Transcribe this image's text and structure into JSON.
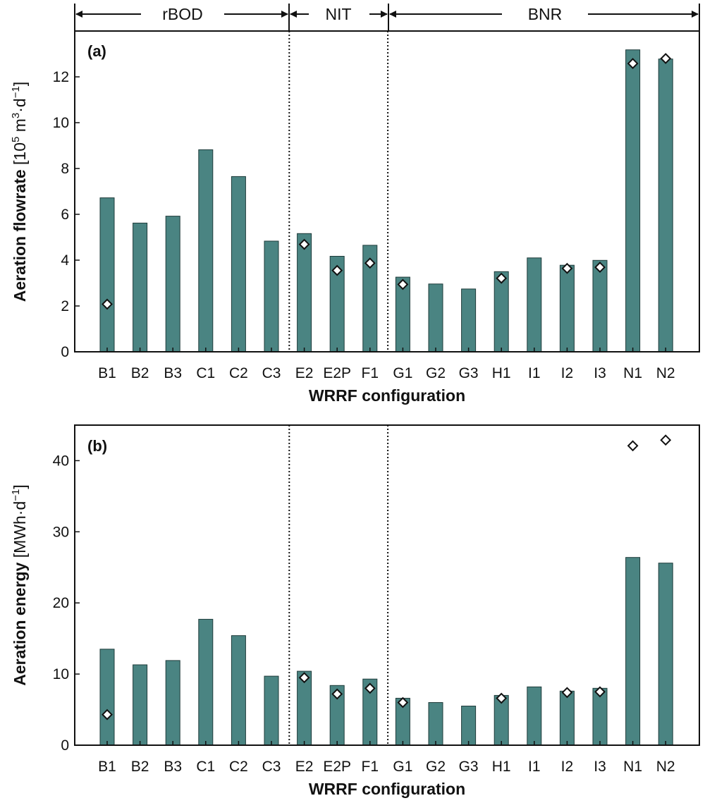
{
  "figure": {
    "xlabel": "WRRF configuration",
    "groups": [
      "rBOD",
      "NIT",
      "BNR"
    ],
    "bar_color": "#4a8482",
    "marker_fill": "#ffffff"
  },
  "chart_data": [
    {
      "type": "bar",
      "panel_label": "(a)",
      "ylabel_bold": "Aeration flowrate",
      "ylabel_unit_open": "[10",
      "ylabel_exp1": "5",
      "ylabel_mid": " m",
      "ylabel_exp2": "3",
      "ylabel_mid2": "·d",
      "ylabel_exp3": "−1",
      "ylabel_close": "]",
      "xlabel": "WRRF configuration",
      "categories": [
        "B1",
        "B2",
        "B3",
        "C1",
        "C2",
        "C3",
        "E2",
        "E2P",
        "F1",
        "G1",
        "G2",
        "G3",
        "H1",
        "I1",
        "I2",
        "I3",
        "N1",
        "N2"
      ],
      "ylim": [
        0,
        14
      ],
      "yticks": [
        0,
        2,
        4,
        6,
        8,
        10,
        12
      ],
      "series": [
        {
          "name": "bars",
          "values": [
            6.72,
            5.62,
            5.92,
            8.82,
            7.65,
            4.83,
            5.16,
            4.17,
            4.65,
            3.26,
            2.96,
            2.74,
            3.5,
            4.1,
            3.78,
            3.99,
            13.18,
            12.78
          ]
        },
        {
          "name": "markers",
          "values": [
            2.08,
            null,
            null,
            null,
            null,
            null,
            4.69,
            3.55,
            3.87,
            2.94,
            null,
            null,
            3.21,
            null,
            3.64,
            3.69,
            12.58,
            12.8
          ]
        }
      ],
      "dividers_after": [
        "C3",
        "F1"
      ]
    },
    {
      "type": "bar",
      "panel_label": "(b)",
      "ylabel_bold": "Aeration energy",
      "ylabel_unit": "[MWh·d",
      "ylabel_exp": "−1",
      "ylabel_close": "]",
      "xlabel": "WRRF configuration",
      "categories": [
        "B1",
        "B2",
        "B3",
        "C1",
        "C2",
        "C3",
        "E2",
        "E2P",
        "F1",
        "G1",
        "G2",
        "G3",
        "H1",
        "I1",
        "I2",
        "I3",
        "N1",
        "N2"
      ],
      "ylim": [
        0,
        45
      ],
      "yticks": [
        0,
        10,
        20,
        30,
        40
      ],
      "series": [
        {
          "name": "bars",
          "values": [
            13.5,
            11.3,
            11.9,
            17.7,
            15.4,
            9.7,
            10.4,
            8.4,
            9.3,
            6.6,
            6.0,
            5.5,
            7.0,
            8.2,
            7.6,
            8.0,
            26.4,
            25.6
          ]
        },
        {
          "name": "markers",
          "values": [
            4.3,
            null,
            null,
            null,
            null,
            null,
            9.5,
            7.2,
            8.0,
            6.0,
            null,
            null,
            6.6,
            null,
            7.4,
            7.5,
            42.1,
            42.9
          ]
        }
      ],
      "dividers_after": [
        "C3",
        "F1"
      ]
    }
  ]
}
